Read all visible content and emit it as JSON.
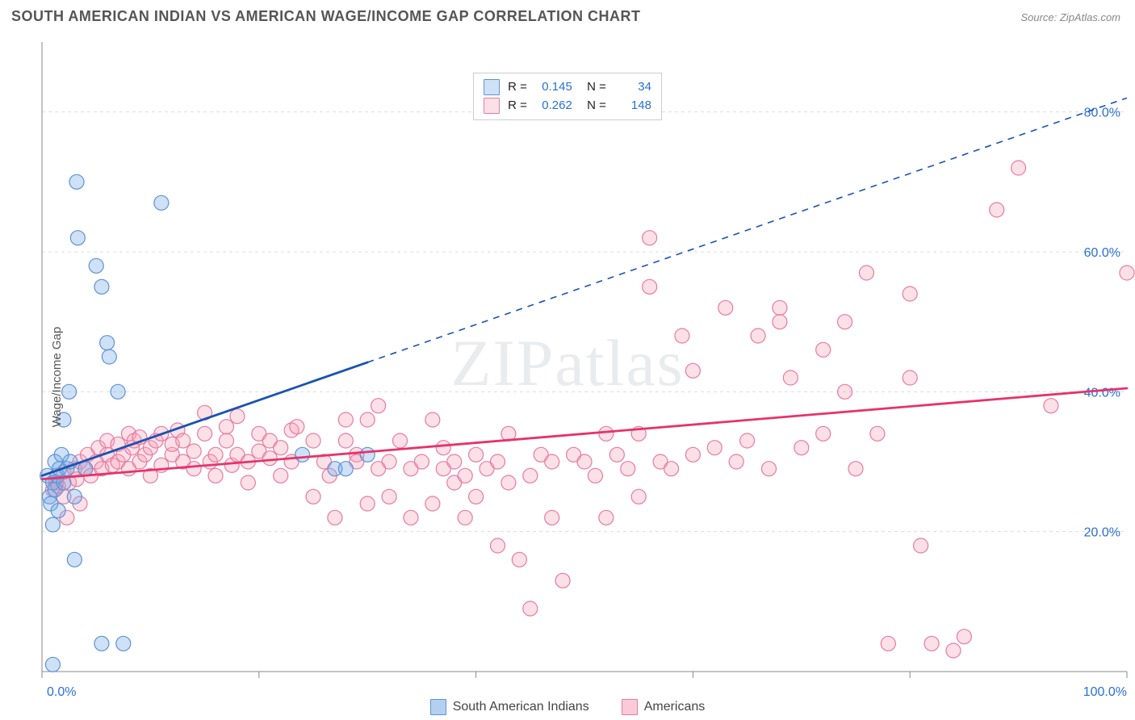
{
  "title": "SOUTH AMERICAN INDIAN VS AMERICAN WAGE/INCOME GAP CORRELATION CHART",
  "source": "Source: ZipAtlas.com",
  "ylabel": "Wage/Income Gap",
  "watermark": "ZIPatlas",
  "chart": {
    "type": "scatter",
    "xlim": [
      0,
      100
    ],
    "ylim": [
      0,
      90
    ],
    "xticks": [
      0,
      20,
      40,
      60,
      80,
      100
    ],
    "yticks": [
      20,
      40,
      60,
      80
    ],
    "xtick_labels": [
      "0.0%",
      "",
      "",
      "",
      "",
      "100.0%"
    ],
    "ytick_labels": [
      "20.0%",
      "40.0%",
      "60.0%",
      "80.0%"
    ],
    "grid_color": "#dcdcdc",
    "axis_color": "#888888",
    "tick_label_color": "#2a6fd6",
    "background_color": "#ffffff",
    "marker_radius": 9,
    "marker_stroke_width": 1.2,
    "trend_line_width": 2.8
  },
  "series": [
    {
      "id": "sai",
      "name": "South American Indians",
      "color_fill": "rgba(117,169,230,0.35)",
      "color_stroke": "#5d93d6",
      "R": "0.145",
      "N": "34",
      "trend": {
        "x1": 0,
        "y1": 28,
        "x2": 100,
        "y2": 82,
        "solid_until_x": 30,
        "color": "#1853b3"
      },
      "points": [
        [
          0.5,
          28
        ],
        [
          0.7,
          25
        ],
        [
          0.8,
          24
        ],
        [
          1,
          27
        ],
        [
          1,
          21
        ],
        [
          1.2,
          26
        ],
        [
          1.2,
          30
        ],
        [
          1.4,
          28
        ],
        [
          1.5,
          23
        ],
        [
          1.6,
          29
        ],
        [
          1.8,
          31
        ],
        [
          2,
          27
        ],
        [
          2,
          36
        ],
        [
          2.3,
          29
        ],
        [
          2.5,
          40
        ],
        [
          2.6,
          30
        ],
        [
          3,
          25
        ],
        [
          3.2,
          70
        ],
        [
          3.3,
          62
        ],
        [
          4,
          29
        ],
        [
          5,
          58
        ],
        [
          5.5,
          55
        ],
        [
          6,
          47
        ],
        [
          6.2,
          45
        ],
        [
          7,
          40
        ],
        [
          3,
          16
        ],
        [
          1,
          1
        ],
        [
          5.5,
          4
        ],
        [
          7.5,
          4
        ],
        [
          11,
          67
        ],
        [
          24,
          31
        ],
        [
          27,
          29
        ],
        [
          28,
          29
        ],
        [
          30,
          31
        ]
      ]
    },
    {
      "id": "am",
      "name": "Americans",
      "color_fill": "rgba(246,158,184,0.32)",
      "color_stroke": "#e87ba0",
      "R": "0.262",
      "N": "148",
      "trend": {
        "x1": 0,
        "y1": 27.5,
        "x2": 100,
        "y2": 40.5,
        "solid_until_x": 100,
        "color": "#e6336b"
      },
      "points": [
        [
          1,
          26
        ],
        [
          1.3,
          27
        ],
        [
          1.5,
          26.5
        ],
        [
          2,
          28.5
        ],
        [
          2,
          25
        ],
        [
          2.3,
          22
        ],
        [
          2.5,
          27
        ],
        [
          3,
          29
        ],
        [
          3.2,
          27.5
        ],
        [
          3.5,
          24
        ],
        [
          3.5,
          30
        ],
        [
          4,
          29
        ],
        [
          4.2,
          31
        ],
        [
          4.5,
          28
        ],
        [
          5,
          30
        ],
        [
          5.2,
          32
        ],
        [
          5.5,
          29
        ],
        [
          6,
          31
        ],
        [
          6,
          33
        ],
        [
          6.5,
          29.5
        ],
        [
          7,
          32.5
        ],
        [
          7,
          30
        ],
        [
          7.5,
          31
        ],
        [
          8,
          34
        ],
        [
          8,
          29
        ],
        [
          8.3,
          32
        ],
        [
          8.5,
          33
        ],
        [
          9,
          30
        ],
        [
          9,
          33.5
        ],
        [
          9.5,
          31
        ],
        [
          10,
          32
        ],
        [
          10,
          28
        ],
        [
          10.5,
          33
        ],
        [
          11,
          29.5
        ],
        [
          11,
          34
        ],
        [
          12,
          31
        ],
        [
          12,
          32.5
        ],
        [
          12.5,
          34.5
        ],
        [
          13,
          30
        ],
        [
          13,
          33
        ],
        [
          14,
          31.5
        ],
        [
          14,
          29
        ],
        [
          15,
          34
        ],
        [
          15,
          37
        ],
        [
          15.5,
          30
        ],
        [
          16,
          31
        ],
        [
          16,
          28
        ],
        [
          17,
          33
        ],
        [
          17,
          35
        ],
        [
          17.5,
          29.5
        ],
        [
          18,
          36.5
        ],
        [
          18,
          31
        ],
        [
          19,
          27
        ],
        [
          19,
          30
        ],
        [
          20,
          31.5
        ],
        [
          20,
          34
        ],
        [
          21,
          33
        ],
        [
          21,
          30.5
        ],
        [
          22,
          32
        ],
        [
          22,
          28
        ],
        [
          23,
          34.5
        ],
        [
          23,
          30
        ],
        [
          23.5,
          35
        ],
        [
          25,
          25
        ],
        [
          25,
          33
        ],
        [
          26,
          30
        ],
        [
          26.5,
          28
        ],
        [
          27,
          22
        ],
        [
          28,
          33
        ],
        [
          28,
          36
        ],
        [
          29,
          31
        ],
        [
          29,
          30
        ],
        [
          30,
          24
        ],
        [
          30,
          36
        ],
        [
          31,
          38
        ],
        [
          31,
          29
        ],
        [
          32,
          25
        ],
        [
          32,
          30
        ],
        [
          33,
          33
        ],
        [
          34,
          22
        ],
        [
          34,
          29
        ],
        [
          35,
          30
        ],
        [
          36,
          24
        ],
        [
          36,
          36
        ],
        [
          37,
          29
        ],
        [
          37,
          32
        ],
        [
          38,
          27
        ],
        [
          38,
          30
        ],
        [
          39,
          22
        ],
        [
          39,
          28
        ],
        [
          40,
          31
        ],
        [
          40,
          25
        ],
        [
          41,
          29
        ],
        [
          42,
          18
        ],
        [
          42,
          30
        ],
        [
          43,
          27
        ],
        [
          43,
          34
        ],
        [
          44,
          16
        ],
        [
          45,
          9
        ],
        [
          45,
          28
        ],
        [
          46,
          31
        ],
        [
          47,
          22
        ],
        [
          47,
          30
        ],
        [
          48,
          13
        ],
        [
          49,
          31
        ],
        [
          50,
          30
        ],
        [
          51,
          28
        ],
        [
          52,
          34
        ],
        [
          52,
          22
        ],
        [
          53,
          31
        ],
        [
          54,
          29
        ],
        [
          55,
          34
        ],
        [
          55,
          25
        ],
        [
          56,
          55
        ],
        [
          56,
          62
        ],
        [
          57,
          30
        ],
        [
          58,
          29
        ],
        [
          59,
          48
        ],
        [
          60,
          31
        ],
        [
          60,
          43
        ],
        [
          62,
          32
        ],
        [
          63,
          52
        ],
        [
          64,
          30
        ],
        [
          65,
          33
        ],
        [
          66,
          48
        ],
        [
          67,
          29
        ],
        [
          68,
          50
        ],
        [
          68,
          52
        ],
        [
          69,
          42
        ],
        [
          70,
          32
        ],
        [
          72,
          34
        ],
        [
          72,
          46
        ],
        [
          74,
          40
        ],
        [
          74,
          50
        ],
        [
          75,
          29
        ],
        [
          76,
          57
        ],
        [
          77,
          34
        ],
        [
          78,
          4
        ],
        [
          80,
          54
        ],
        [
          80,
          42
        ],
        [
          81,
          18
        ],
        [
          82,
          4
        ],
        [
          84,
          3
        ],
        [
          85,
          5
        ],
        [
          88,
          66
        ],
        [
          90,
          72
        ],
        [
          93,
          38
        ],
        [
          100,
          57
        ]
      ]
    }
  ],
  "legend_bottom": [
    {
      "label": "South American Indians",
      "fill": "rgba(117,169,230,0.55)",
      "stroke": "#5d93d6"
    },
    {
      "label": "Americans",
      "fill": "rgba(246,158,184,0.55)",
      "stroke": "#e87ba0"
    }
  ]
}
